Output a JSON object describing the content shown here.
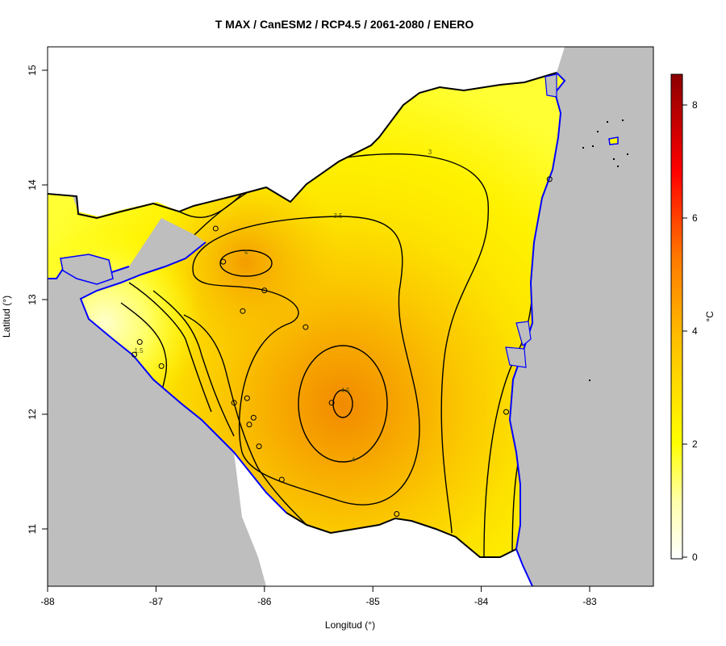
{
  "title": "T MAX / CanESM2 / RCP4.5 / 2061-2080 / ENERO",
  "x_axis": {
    "label": "Longitud (°)",
    "ticks": [
      "-88",
      "-87",
      "-86",
      "-85",
      "-84",
      "-83"
    ]
  },
  "y_axis": {
    "label": "Latitud (°)",
    "ticks": [
      "11",
      "12",
      "13",
      "14",
      "15"
    ]
  },
  "colorbar": {
    "unit": "°C",
    "ticks": [
      "0",
      "2",
      "4",
      "6",
      "8"
    ],
    "range": [
      0,
      8.6
    ],
    "colors": [
      "#ffffff",
      "#ffff99",
      "#ffff00",
      "#ffcc00",
      "#ff9900",
      "#ff0000",
      "#8b0000"
    ]
  },
  "contour_labels": [
    "3",
    "3.5",
    "4",
    "4.5",
    "4",
    "1.5"
  ],
  "colors": {
    "ocean": "#bebebe",
    "coast": "#0000ff",
    "border": "#000000",
    "contour": "#000000"
  },
  "chart_data": {
    "type": "heatmap",
    "title": "T MAX / CanESM2 / RCP4.5 / 2061-2080 / ENERO",
    "xlabel": "Longitud (°)",
    "ylabel": "Latitud (°)",
    "xlim": [
      -88,
      -82.4
    ],
    "ylim": [
      10.5,
      15.2
    ],
    "zlabel": "°C",
    "zlim": [
      0,
      8.6
    ],
    "contour_levels": [
      1.5,
      2,
      2.5,
      3,
      3.5,
      4,
      4.5
    ],
    "maxima": [
      {
        "lon": -85.25,
        "lat": 12.1,
        "value": 4.6
      },
      {
        "lon": -86.2,
        "lat": 13.33,
        "value": 4.1
      }
    ],
    "stations": [
      {
        "lon": -86.45,
        "lat": 13.62
      },
      {
        "lon": -86.38,
        "lat": 13.33
      },
      {
        "lon": -86.0,
        "lat": 13.08
      },
      {
        "lon": -86.2,
        "lat": 12.9
      },
      {
        "lon": -85.62,
        "lat": 12.76
      },
      {
        "lon": -87.15,
        "lat": 12.63
      },
      {
        "lon": -87.2,
        "lat": 12.52
      },
      {
        "lon": -86.95,
        "lat": 12.42
      },
      {
        "lon": -86.28,
        "lat": 12.1
      },
      {
        "lon": -86.16,
        "lat": 12.14
      },
      {
        "lon": -86.1,
        "lat": 11.97
      },
      {
        "lon": -86.14,
        "lat": 11.91
      },
      {
        "lon": -86.05,
        "lat": 11.72
      },
      {
        "lon": -85.84,
        "lat": 11.43
      },
      {
        "lon": -85.38,
        "lat": 12.1
      },
      {
        "lon": -84.78,
        "lat": 11.13
      },
      {
        "lon": -83.77,
        "lat": 12.02
      },
      {
        "lon": -83.37,
        "lat": 14.05
      }
    ]
  }
}
